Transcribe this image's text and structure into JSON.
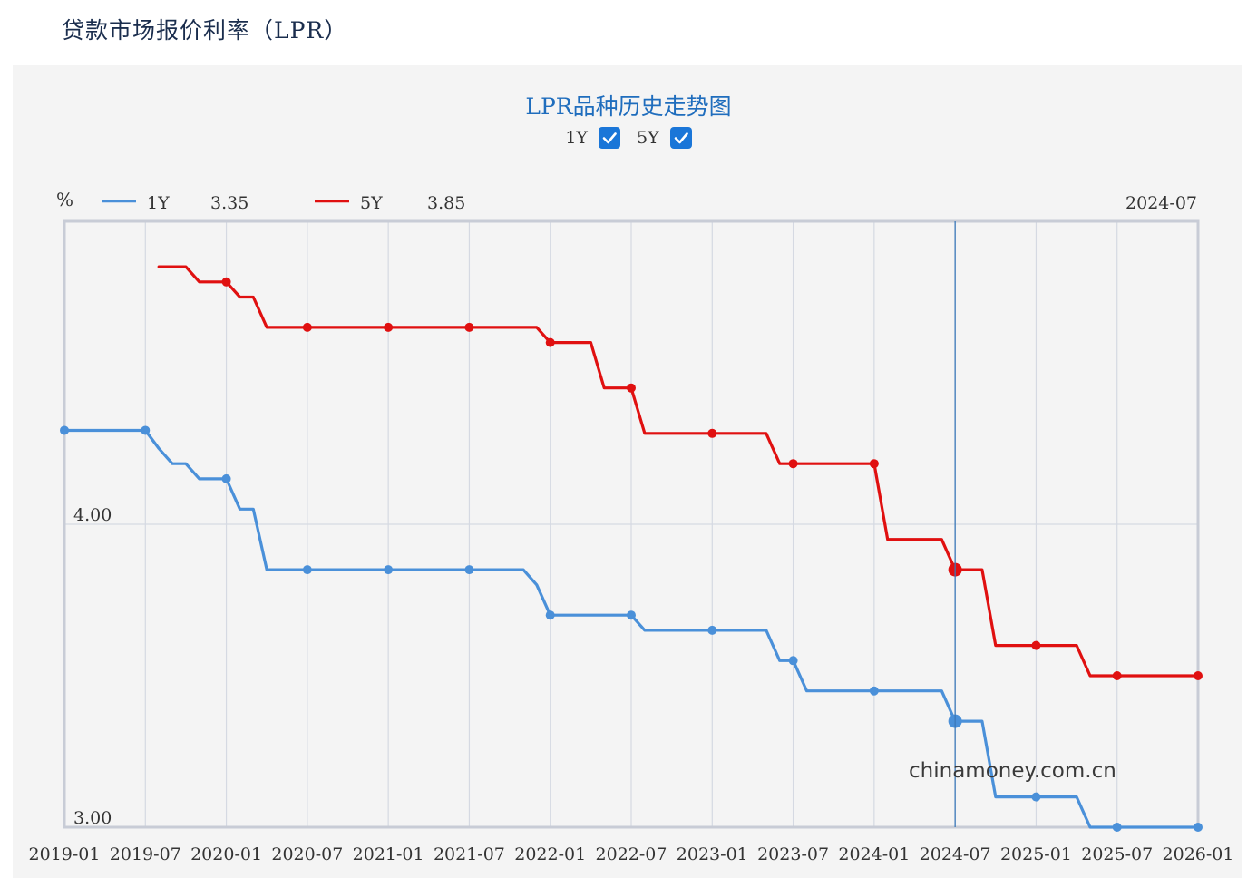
{
  "page": {
    "header": "贷款市场报价利率（LPR）"
  },
  "toggles": [
    {
      "label": "1Y",
      "checked": true
    },
    {
      "label": "5Y",
      "checked": true
    }
  ],
  "readout": {
    "unit": "%",
    "date": "2024-07",
    "series": [
      {
        "name": "1Y",
        "value": "3.35"
      },
      {
        "name": "5Y",
        "value": "3.85"
      }
    ]
  },
  "watermark": "chinamoney.com.cn",
  "colors": {
    "s1Y": "#4a90d9",
    "s5Y": "#e01010",
    "grid": "#d5d9e2",
    "crosshair": "#3a78b8"
  },
  "chart_data": {
    "type": "line",
    "title": "LPR品种历史走势图",
    "xlabel": "",
    "ylabel": "%",
    "x_ticks": [
      "2019-01",
      "2019-07",
      "2020-01",
      "2020-07",
      "2021-01",
      "2021-07",
      "2022-01",
      "2022-07",
      "2023-01",
      "2023-07",
      "2024-01",
      "2024-07",
      "2025-01",
      "2025-07",
      "2026-01"
    ],
    "y_ticks": [
      {
        "value": 3.0,
        "label": "3.00"
      },
      {
        "value": 4.0,
        "label": "4.00"
      }
    ],
    "ylim": [
      3.0,
      5.0
    ],
    "xlim": [
      "2019-01",
      "2026-01"
    ],
    "grid": true,
    "legend": "top-left",
    "crosshair_x": "2024-07",
    "series": [
      {
        "name": "1Y",
        "points": [
          [
            "2019-01",
            4.31
          ],
          [
            "2019-07",
            4.31
          ],
          [
            "2019-08",
            4.25
          ],
          [
            "2019-09",
            4.2
          ],
          [
            "2019-10",
            4.2
          ],
          [
            "2019-11",
            4.15
          ],
          [
            "2020-01",
            4.15
          ],
          [
            "2020-02",
            4.05
          ],
          [
            "2020-03",
            4.05
          ],
          [
            "2020-04",
            3.85
          ],
          [
            "2020-07",
            3.85
          ],
          [
            "2021-01",
            3.85
          ],
          [
            "2021-07",
            3.85
          ],
          [
            "2021-11",
            3.85
          ],
          [
            "2021-12",
            3.8
          ],
          [
            "2022-01",
            3.7
          ],
          [
            "2022-07",
            3.7
          ],
          [
            "2022-08",
            3.65
          ],
          [
            "2023-01",
            3.65
          ],
          [
            "2023-05",
            3.65
          ],
          [
            "2023-06",
            3.55
          ],
          [
            "2023-07",
            3.55
          ],
          [
            "2023-08",
            3.45
          ],
          [
            "2024-01",
            3.45
          ],
          [
            "2024-06",
            3.45
          ],
          [
            "2024-07",
            3.35
          ],
          [
            "2024-09",
            3.35
          ],
          [
            "2024-10",
            3.1
          ],
          [
            "2025-01",
            3.1
          ],
          [
            "2025-04",
            3.1
          ],
          [
            "2025-05",
            3.0
          ],
          [
            "2025-07",
            3.0
          ],
          [
            "2026-01",
            3.0
          ]
        ],
        "markers": [
          [
            "2019-01",
            4.31
          ],
          [
            "2019-07",
            4.31
          ],
          [
            "2020-01",
            4.15
          ],
          [
            "2020-07",
            3.85
          ],
          [
            "2021-01",
            3.85
          ],
          [
            "2021-07",
            3.85
          ],
          [
            "2022-01",
            3.7
          ],
          [
            "2022-07",
            3.7
          ],
          [
            "2023-01",
            3.65
          ],
          [
            "2023-07",
            3.55
          ],
          [
            "2024-01",
            3.45
          ],
          [
            "2024-07",
            3.35
          ],
          [
            "2025-01",
            3.1
          ],
          [
            "2025-07",
            3.0
          ],
          [
            "2026-01",
            3.0
          ]
        ]
      },
      {
        "name": "5Y",
        "points": [
          [
            "2019-08",
            4.85
          ],
          [
            "2019-10",
            4.85
          ],
          [
            "2019-11",
            4.8
          ],
          [
            "2020-01",
            4.8
          ],
          [
            "2020-02",
            4.75
          ],
          [
            "2020-03",
            4.75
          ],
          [
            "2020-04",
            4.65
          ],
          [
            "2020-07",
            4.65
          ],
          [
            "2021-01",
            4.65
          ],
          [
            "2021-07",
            4.65
          ],
          [
            "2021-12",
            4.65
          ],
          [
            "2022-01",
            4.6
          ],
          [
            "2022-04",
            4.6
          ],
          [
            "2022-05",
            4.45
          ],
          [
            "2022-07",
            4.45
          ],
          [
            "2022-08",
            4.3
          ],
          [
            "2023-01",
            4.3
          ],
          [
            "2023-05",
            4.3
          ],
          [
            "2023-06",
            4.2
          ],
          [
            "2023-07",
            4.2
          ],
          [
            "2024-01",
            4.2
          ],
          [
            "2024-02",
            3.95
          ],
          [
            "2024-06",
            3.95
          ],
          [
            "2024-07",
            3.85
          ],
          [
            "2024-09",
            3.85
          ],
          [
            "2024-10",
            3.6
          ],
          [
            "2025-01",
            3.6
          ],
          [
            "2025-04",
            3.6
          ],
          [
            "2025-05",
            3.5
          ],
          [
            "2025-07",
            3.5
          ],
          [
            "2026-01",
            3.5
          ]
        ],
        "markers": [
          [
            "2020-01",
            4.8
          ],
          [
            "2020-07",
            4.65
          ],
          [
            "2021-01",
            4.65
          ],
          [
            "2021-07",
            4.65
          ],
          [
            "2022-01",
            4.6
          ],
          [
            "2022-07",
            4.45
          ],
          [
            "2023-01",
            4.3
          ],
          [
            "2023-07",
            4.2
          ],
          [
            "2024-01",
            4.2
          ],
          [
            "2024-07",
            3.85
          ],
          [
            "2025-01",
            3.6
          ],
          [
            "2025-07",
            3.5
          ],
          [
            "2026-01",
            3.5
          ]
        ]
      }
    ]
  }
}
